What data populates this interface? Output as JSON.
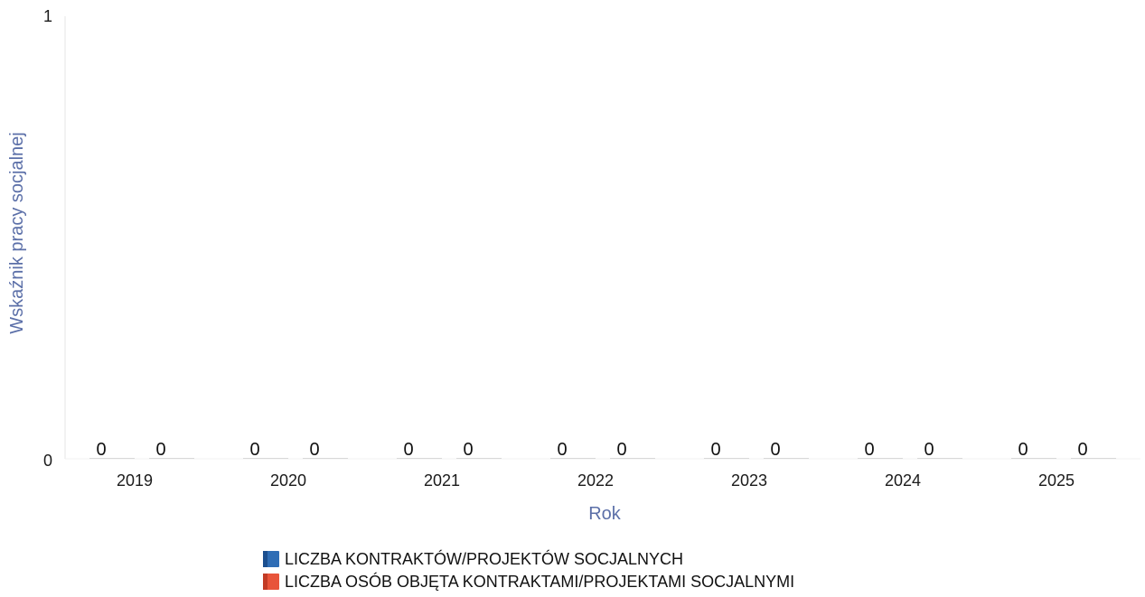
{
  "chart_data": {
    "type": "bar",
    "categories": [
      "2019",
      "2020",
      "2021",
      "2022",
      "2023",
      "2024",
      "2025"
    ],
    "series": [
      {
        "name": "LICZBA KONTRAKTÓW/PROJEKTÓW SOCJALNYCH",
        "values": [
          0,
          0,
          0,
          0,
          0,
          0,
          0
        ],
        "color": "#2f6db5"
      },
      {
        "name": "LICZBA OSÓB OBJĘTA KONTRAKTAMI/PROJEKTAMI SOCJALNYMI",
        "values": [
          0,
          0,
          0,
          0,
          0,
          0,
          0
        ],
        "color": "#e8543a"
      }
    ],
    "xlabel": "Rok",
    "ylabel": "Wskaźnik pracy socjalnej",
    "ylim": [
      0,
      1
    ],
    "yticks": [
      "0",
      "1"
    ],
    "grid": false,
    "legend_position": "bottom"
  }
}
